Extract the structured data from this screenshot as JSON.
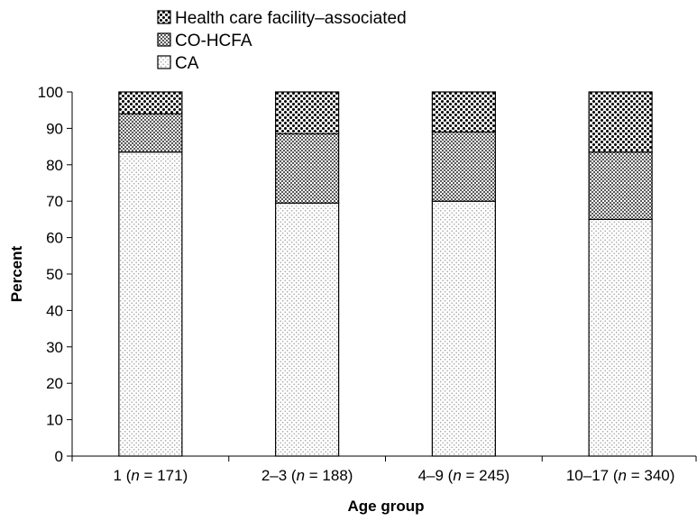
{
  "chart_data": {
    "type": "bar",
    "stacked": true,
    "title": "",
    "xlabel": "Age group",
    "ylabel": "Percent",
    "ylim": [
      0,
      100
    ],
    "yticks": [
      0,
      10,
      20,
      30,
      40,
      50,
      60,
      70,
      80,
      90,
      100
    ],
    "grid": false,
    "legend_position": "top-left",
    "categories": [
      {
        "prefix": "1 (",
        "n_symbol": "n",
        "suffix": " = 171)"
      },
      {
        "prefix": "2–3 (",
        "n_symbol": "n",
        "suffix": " = 188)"
      },
      {
        "prefix": "4–9 (",
        "n_symbol": "n",
        "suffix": " = 245)"
      },
      {
        "prefix": "10–17 (",
        "n_symbol": "n",
        "suffix": " = 340)"
      }
    ],
    "series": [
      {
        "name": "CA",
        "pattern": "dots-light",
        "values": [
          83.5,
          69.5,
          70,
          65
        ]
      },
      {
        "name": "CO-HCFA",
        "pattern": "dots-medium",
        "values": [
          10.5,
          19,
          19,
          18.5
        ]
      },
      {
        "name": "Health care facility–associated",
        "pattern": "dots-dark",
        "values": [
          6,
          11.5,
          11,
          16.5
        ]
      }
    ],
    "legend_order": [
      2,
      1,
      0
    ]
  }
}
